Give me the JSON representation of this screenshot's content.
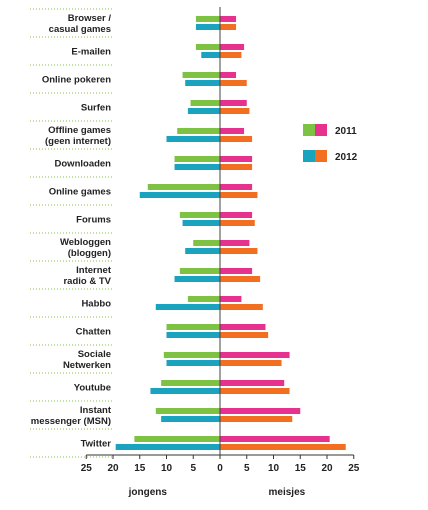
{
  "chart_data": {
    "type": "bar",
    "orientation": "horizontal-diverging",
    "categories": [
      [
        "Browser /",
        "casual games"
      ],
      [
        "E-mailen"
      ],
      [
        "Online pokeren"
      ],
      [
        "Surfen"
      ],
      [
        "Offline games",
        "(geen internet)"
      ],
      [
        "Downloaden"
      ],
      [
        "Online games"
      ],
      [
        "Forums"
      ],
      [
        "Webloggen",
        "(bloggen)"
      ],
      [
        "Internet",
        "radio & TV"
      ],
      [
        "Habbo"
      ],
      [
        "Chatten"
      ],
      [
        "Sociale",
        "Netwerken"
      ],
      [
        "Youtube"
      ],
      [
        "Instant",
        "messenger (MSN)"
      ],
      [
        "Twitter"
      ]
    ],
    "series": [
      {
        "name": "2011",
        "jongens": [
          4.5,
          4.5,
          7.0,
          5.5,
          8.0,
          8.5,
          13.5,
          7.5,
          5.0,
          7.5,
          6.0,
          10.0,
          10.5,
          11.0,
          12.0,
          16.0
        ],
        "meisjes": [
          3.0,
          4.5,
          3.0,
          5.0,
          4.5,
          6.0,
          6.0,
          6.0,
          5.5,
          6.0,
          4.0,
          8.5,
          13.0,
          12.0,
          15.0,
          20.5
        ]
      },
      {
        "name": "2012",
        "jongens": [
          4.5,
          3.5,
          6.5,
          6.0,
          10.0,
          8.5,
          15.0,
          7.0,
          6.5,
          8.5,
          12.0,
          10.0,
          10.0,
          13.0,
          11.0,
          19.5
        ],
        "meisjes": [
          3.0,
          4.0,
          5.0,
          5.5,
          6.0,
          6.0,
          7.0,
          6.5,
          7.0,
          7.5,
          8.0,
          9.0,
          11.5,
          13.0,
          13.5,
          23.5
        ]
      }
    ],
    "xlim": [
      -25,
      25
    ],
    "xticks": [
      25,
      20,
      15,
      10,
      5,
      0,
      5,
      10,
      15,
      20,
      25
    ],
    "xlabel_left": "jongens",
    "xlabel_right": "meisjes",
    "legend": [
      {
        "label": "2011",
        "left_color": "#7dc242",
        "right_color": "#e6318f"
      },
      {
        "label": "2012",
        "left_color": "#1aa3be",
        "right_color": "#f26f21"
      }
    ],
    "legend_position": "right",
    "grid": false
  }
}
